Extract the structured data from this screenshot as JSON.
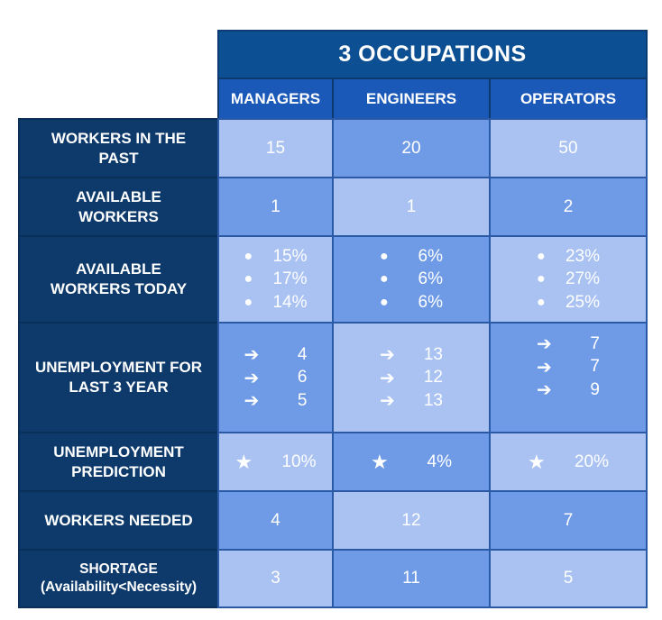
{
  "title": "3 OCCUPATIONS",
  "columns": [
    "MANAGERS",
    "ENGINEERS",
    "OPERATORS"
  ],
  "rows": {
    "workers_past": {
      "label": "WORKERS IN THE PAST",
      "values": [
        "15",
        "20",
        "50"
      ]
    },
    "available": {
      "label": "AVAILABLE WORKERS",
      "values": [
        "1",
        "1",
        "2"
      ]
    },
    "available_today": {
      "label": "AVAILABLE WORKERS TODAY",
      "managers": [
        "15%",
        "17%",
        "14%"
      ],
      "engineers": [
        "6%",
        "6%",
        "6%"
      ],
      "operators": [
        "23%",
        "27%",
        "25%"
      ]
    },
    "unemployment": {
      "label": "UNEMPLOYMENT FOR LAST 3 YEAR",
      "managers": [
        "4",
        "6",
        "5"
      ],
      "engineers": [
        "13",
        "12",
        "13"
      ],
      "operators": [
        "7",
        "7",
        "9"
      ]
    },
    "prediction": {
      "label": "UNEMPLOYMENT PREDICTION",
      "values": [
        "10%",
        "4%",
        "20%"
      ]
    },
    "needed": {
      "label": "WORKERS NEEDED",
      "values": [
        "4",
        "12",
        "7"
      ]
    },
    "shortage": {
      "label_line1": "SHORTAGE",
      "label_line2": "(Availability<Necessity)",
      "values": [
        "3",
        "11",
        "5"
      ]
    }
  },
  "colors": {
    "dark_navy": "#0d3a6b",
    "header_blue": "#1b59b8",
    "title_blue": "#0d4f93",
    "light_cell": "#a9c2f2",
    "mid_cell": "#6f9be6"
  },
  "icons": {
    "bullet": "bullet-icon",
    "arrow": "arrow-right-icon",
    "star": "star-icon"
  }
}
